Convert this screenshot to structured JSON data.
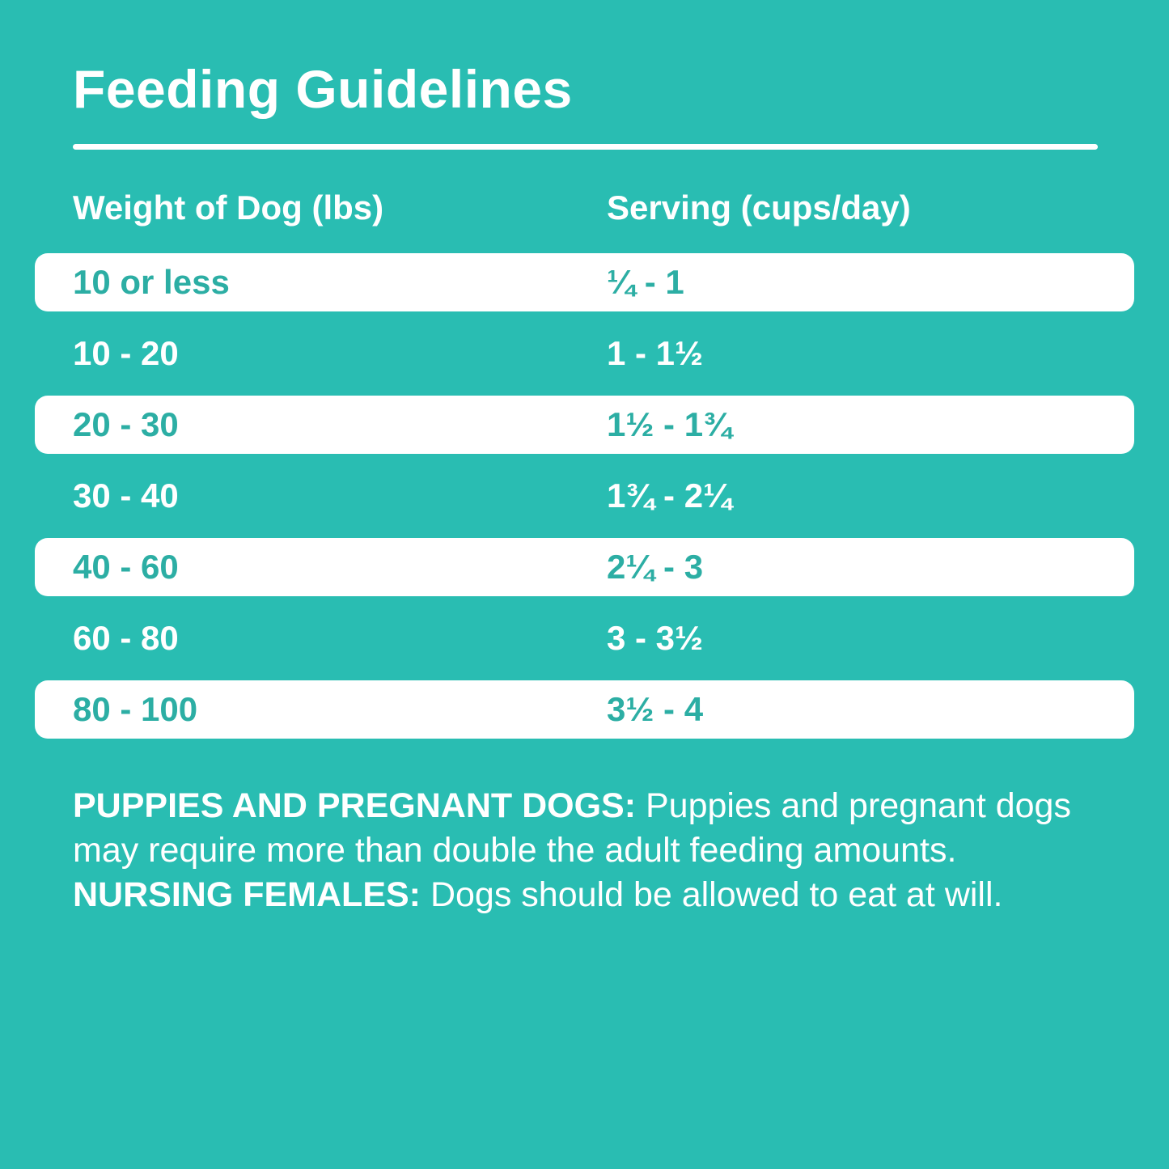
{
  "colors": {
    "background": "#29BDB2",
    "row_white_bg": "#FFFFFF",
    "row_teal_text": "#2CAEA4",
    "text_white": "#FFFFFF"
  },
  "title": "Feeding Guidelines",
  "table": {
    "headers": {
      "weight": "Weight of Dog (lbs)",
      "serving": "Serving (cups/day)"
    },
    "rows": [
      {
        "weight": "10 or less",
        "serving": "¼ - 1"
      },
      {
        "weight": "10 - 20",
        "serving": "1 - 1½"
      },
      {
        "weight": "20 - 30",
        "serving": "1½ - 1¾"
      },
      {
        "weight": "30 - 40",
        "serving": "1¾ - 2¼"
      },
      {
        "weight": "40 - 60",
        "serving": "2¼ - 3"
      },
      {
        "weight": "60 - 80",
        "serving": "3 - 3½"
      },
      {
        "weight": "80 - 100",
        "serving": "3½ - 4"
      }
    ]
  },
  "notes": {
    "segments": [
      {
        "text": "PUPPIES AND PREGNANT DOGS: ",
        "bold": true
      },
      {
        "text": "Puppies and pregnant dogs may require more than double the adult feeding amounts. ",
        "bold": false
      },
      {
        "text": "NURSING FEMALES: ",
        "bold": true
      },
      {
        "text": "Dogs should be allowed to eat at will.",
        "bold": false
      }
    ]
  }
}
